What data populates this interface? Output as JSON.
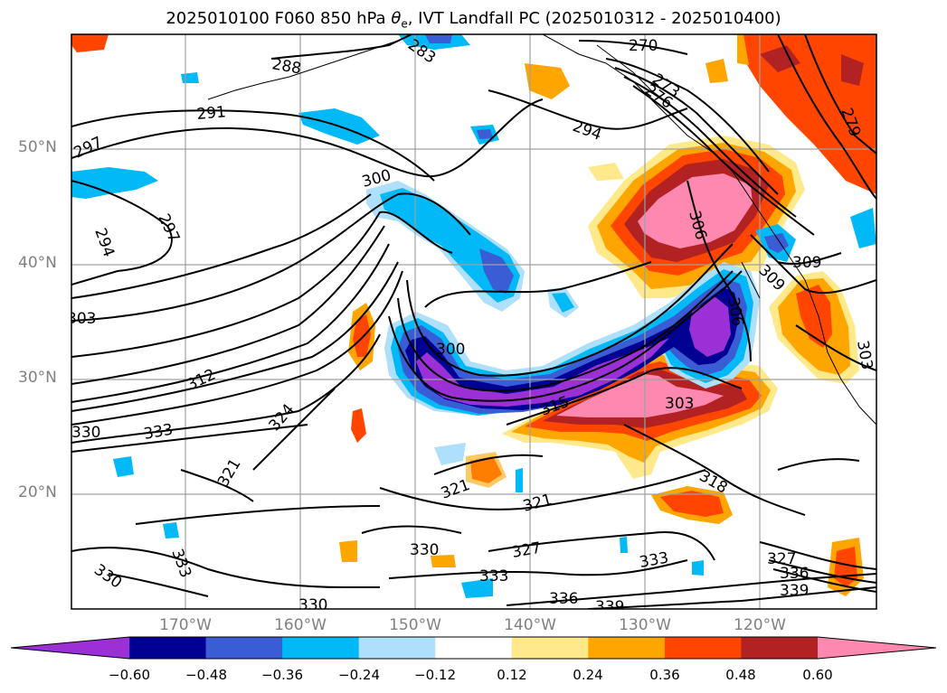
{
  "title": {
    "prefix": "2025010100 F060 850 hPa ",
    "theta": "θ",
    "theta_sub": "e",
    "suffix": ", IVT Landfall PC (2025010312 - 2025010400)"
  },
  "axes": {
    "lat_labels": [
      "50°N",
      "40°N",
      "30°N",
      "20°N"
    ],
    "lon_labels": [
      "170°W",
      "160°W",
      "150°W",
      "140°W",
      "130°W",
      "120°W"
    ]
  },
  "colorbar": {
    "colors": [
      "#9b30d6",
      "#000092",
      "#3a5cd4",
      "#00b9f6",
      "#aee0fb",
      "#ffffff",
      "#ffe98a",
      "#ffa500",
      "#ff4500",
      "#b22222",
      "#ff88b0"
    ],
    "tick_labels": [
      "−0.60",
      "−0.48",
      "−0.36",
      "−0.24",
      "−0.12",
      "0.12",
      "0.24",
      "0.36",
      "0.48",
      "0.60"
    ],
    "extend": "both"
  },
  "contour_labels": [
    "270",
    "273",
    "276",
    "279",
    "283",
    "288",
    "291",
    "294",
    "294",
    "297",
    "297",
    "300",
    "300",
    "303",
    "303",
    "306",
    "309",
    "309",
    "312",
    "315",
    "318",
    "321",
    "321",
    "321",
    "324",
    "327",
    "327",
    "330",
    "330",
    "330",
    "330",
    "333",
    "333",
    "333",
    "333",
    "336",
    "336",
    "339",
    "339",
    "303",
    "306"
  ],
  "map_features": [
    "coastline",
    "graticule",
    "theta-e-contours",
    "ivt-pc-shading"
  ]
}
